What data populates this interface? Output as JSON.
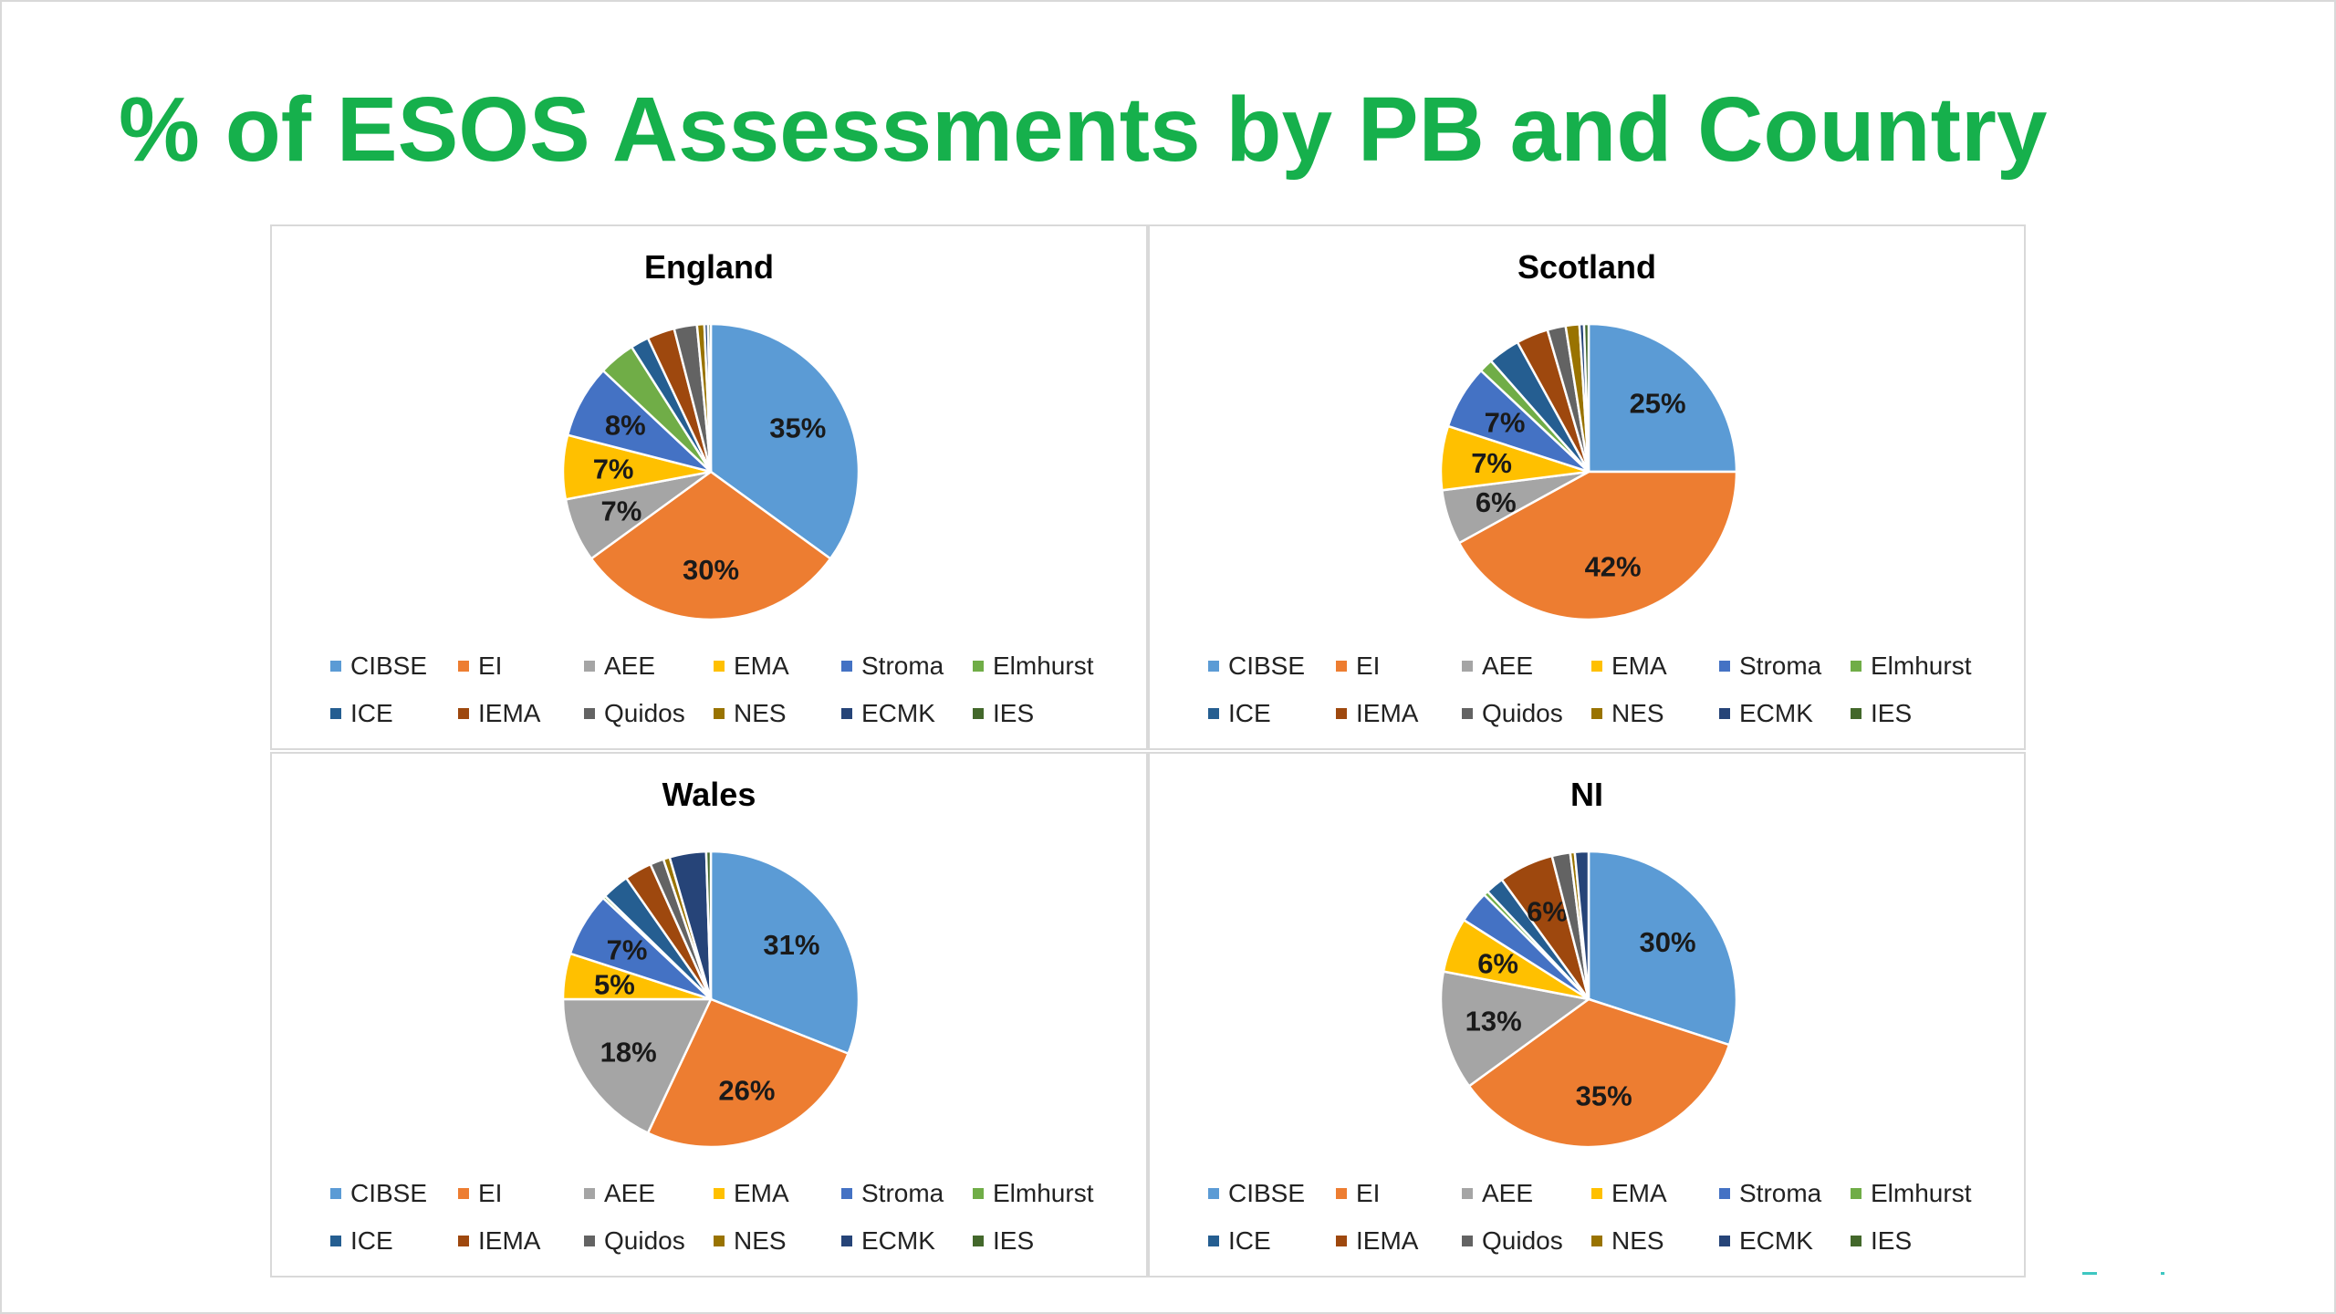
{
  "slide": {
    "title": "% of ESOS Assessments by PB and Country"
  },
  "colors": {
    "CIBSE": "#5b9bd5",
    "EI": "#ed7d31",
    "AEE": "#a5a5a5",
    "EMA": "#ffc000",
    "Stroma": "#4472c4",
    "Elmhurst": "#70ad47",
    "ICE": "#255e91",
    "IEMA": "#9e480e",
    "Quidos": "#636363",
    "NES": "#997300",
    "ECMK": "#264478",
    "IES": "#43682b"
  },
  "legend": [
    "CIBSE",
    "EI",
    "AEE",
    "EMA",
    "Stroma",
    "Elmhurst",
    "ICE",
    "IEMA",
    "Quidos",
    "NES",
    "ECMK",
    "IES"
  ],
  "chart_data": [
    {
      "type": "pie",
      "title": "England",
      "categories": [
        "CIBSE",
        "EI",
        "AEE",
        "EMA",
        "Stroma",
        "Elmhurst",
        "ICE",
        "IEMA",
        "Quidos",
        "NES",
        "ECMK",
        "IES"
      ],
      "values": [
        35,
        30,
        7,
        7,
        8,
        4,
        2,
        3,
        2.5,
        0.8,
        0.4,
        0.3
      ],
      "labels": [
        "35%",
        "30%",
        "7%",
        "7%",
        "8%",
        "",
        "",
        "",
        "",
        "",
        "",
        ""
      ]
    },
    {
      "type": "pie",
      "title": "Scotland",
      "categories": [
        "CIBSE",
        "EI",
        "AEE",
        "EMA",
        "Stroma",
        "Elmhurst",
        "ICE",
        "IEMA",
        "Quidos",
        "NES",
        "ECMK",
        "IES"
      ],
      "values": [
        25,
        42,
        6,
        7,
        7,
        1.5,
        3.5,
        3.5,
        2,
        1.5,
        0.5,
        0.5
      ],
      "labels": [
        "25%",
        "42%",
        "6%",
        "7%",
        "7%",
        "",
        "",
        "",
        "",
        "",
        "",
        ""
      ]
    },
    {
      "type": "pie",
      "title": "Wales",
      "categories": [
        "CIBSE",
        "EI",
        "AEE",
        "EMA",
        "Stroma",
        "Elmhurst",
        "ICE",
        "IEMA",
        "Quidos",
        "NES",
        "ECMK",
        "IES"
      ],
      "values": [
        31,
        26,
        18,
        5,
        7,
        0.3,
        3,
        3,
        1.5,
        0.7,
        4,
        0.5
      ],
      "labels": [
        "31%",
        "26%",
        "18%",
        "5%",
        "7%",
        "",
        "",
        "",
        "",
        "",
        "",
        ""
      ]
    },
    {
      "type": "pie",
      "title": "NI",
      "categories": [
        "CIBSE",
        "EI",
        "AEE",
        "EMA",
        "Stroma",
        "Elmhurst",
        "ICE",
        "IEMA",
        "Quidos",
        "NES",
        "ECMK",
        "IES"
      ],
      "values": [
        30,
        35,
        13,
        6,
        3.5,
        0.5,
        2,
        6,
        2,
        0.5,
        1.5,
        0
      ],
      "labels": [
        "30%",
        "35%",
        "13%",
        "6%",
        "",
        "",
        "",
        "6%",
        "",
        "",
        "",
        ""
      ]
    }
  ]
}
